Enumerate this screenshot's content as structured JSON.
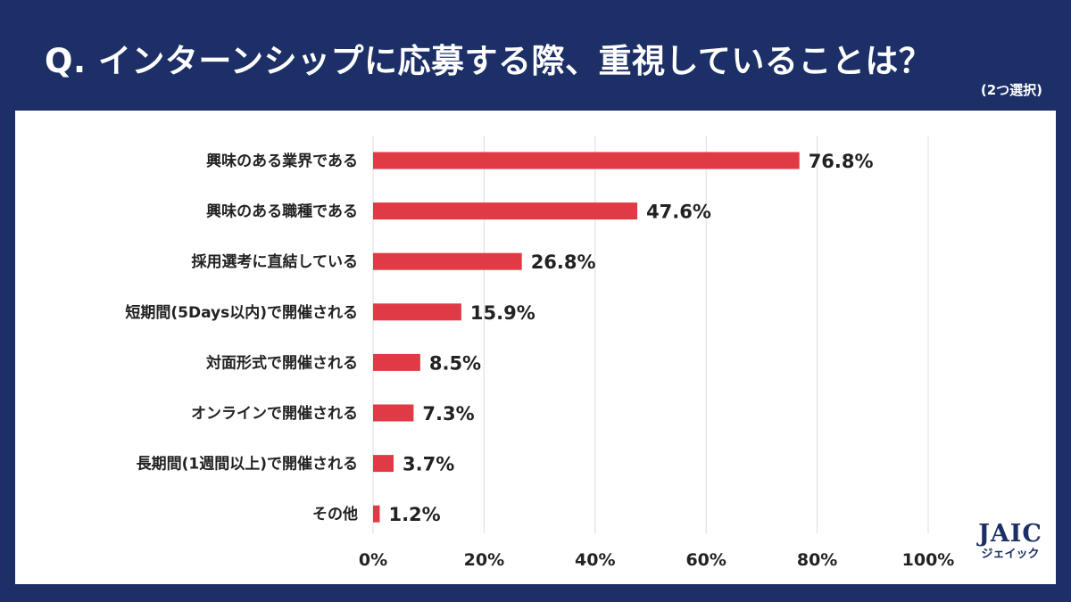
{
  "header": {
    "title": "Q. インターンシップに応募する際、重視していることは？",
    "note": "(2つ選択)"
  },
  "logo": {
    "main": "JAIC",
    "sub": "ジェイック"
  },
  "colors": {
    "background": "#1c2f66",
    "bar": "#e03a45",
    "grid": "#dddddd"
  },
  "chart_data": {
    "type": "bar",
    "orientation": "horizontal",
    "categories": [
      "興味のある業界である",
      "興味のある職種である",
      "採用選考に直結している",
      "短期間(5Days以内)で開催される",
      "対面形式で開催される",
      "オンラインで開催される",
      "長期間(1週間以上)で開催される",
      "その他"
    ],
    "values": [
      76.8,
      47.6,
      26.8,
      15.9,
      8.5,
      7.3,
      3.7,
      1.2
    ],
    "value_labels": [
      "76.8%",
      "47.6%",
      "26.8%",
      "15.9%",
      "8.5%",
      "7.3%",
      "3.7%",
      "1.2%"
    ],
    "xlim": [
      0,
      100
    ],
    "xticks": [
      0,
      20,
      40,
      60,
      80,
      100
    ],
    "xtick_labels": [
      "0%",
      "20%",
      "40%",
      "60%",
      "80%",
      "100%"
    ],
    "grid": true,
    "title": "Q. インターンシップに応募する際、重視していることは？",
    "xlabel": "",
    "ylabel": ""
  }
}
